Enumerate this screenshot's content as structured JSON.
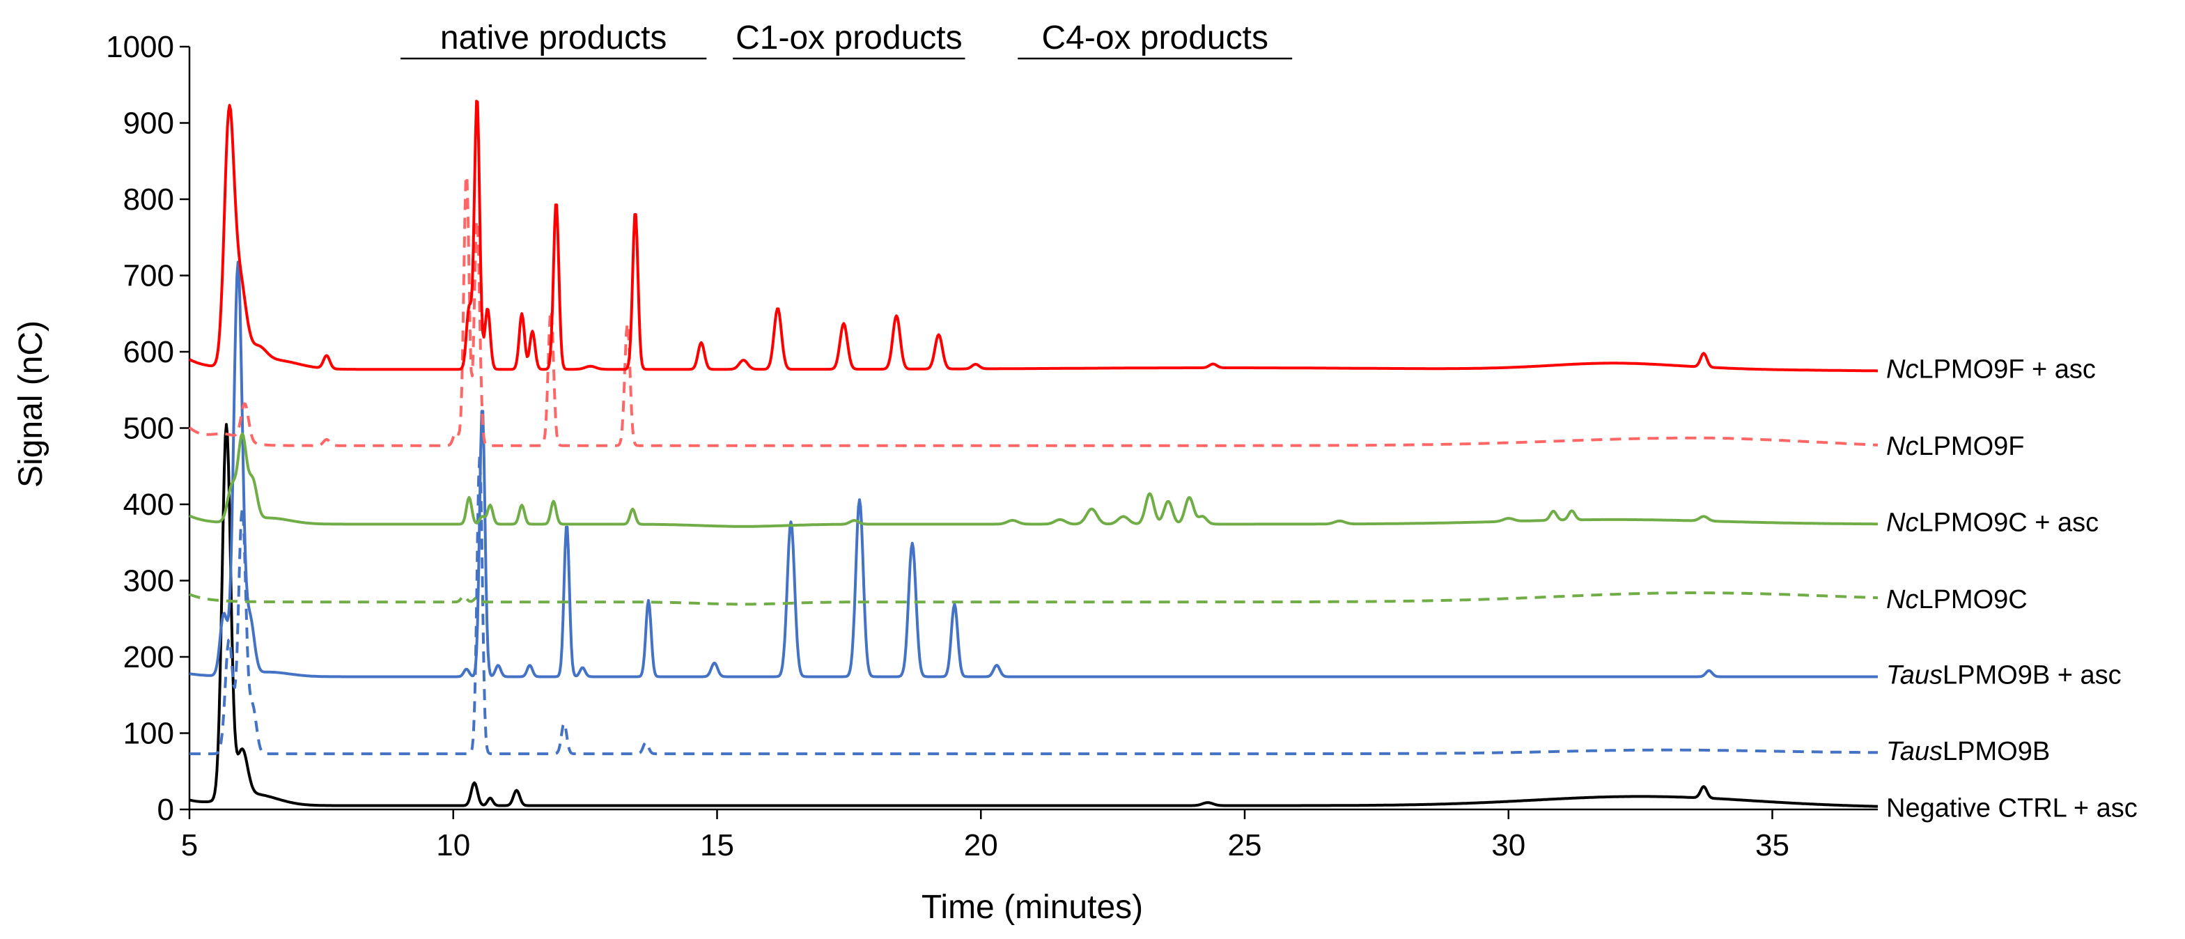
{
  "chart_data": {
    "type": "line",
    "title": "",
    "xlabel": "Time (minutes)",
    "ylabel": "Signal (nC)",
    "xlim": [
      5,
      37
    ],
    "ylim": [
      0,
      1000
    ],
    "x_ticks": [
      5,
      10,
      15,
      20,
      25,
      30,
      35
    ],
    "y_ticks": [
      0,
      100,
      200,
      300,
      400,
      500,
      600,
      700,
      800,
      900,
      1000
    ],
    "grid": false,
    "regions": [
      {
        "label": "native products",
        "x_start": 9,
        "x_end": 14.8
      },
      {
        "label": "C1-ox products",
        "x_start": 15.3,
        "x_end": 19.7
      },
      {
        "label": "C4-ox products",
        "x_start": 20.7,
        "x_end": 25.9
      }
    ],
    "series": [
      {
        "name": "NcLPMO9F + asc",
        "label_italic": "Nc",
        "label_rest": "LPMO9F + asc",
        "color": "#ff0000",
        "dash": false,
        "baseline": 577,
        "start_value": 590,
        "end_value": 575,
        "humps": [
          [
            32.0,
            8,
            1.2
          ],
          [
            24.5,
            2,
            3.0
          ],
          [
            6.6,
            12,
            0.45
          ]
        ],
        "peaks": [
          [
            5.75,
            313,
            0.09
          ],
          [
            5.95,
            110,
            0.12
          ],
          [
            6.3,
            20,
            0.15
          ],
          [
            7.6,
            17,
            0.06
          ],
          [
            10.3,
            80,
            0.05
          ],
          [
            10.45,
            357,
            0.05
          ],
          [
            10.65,
            80,
            0.05
          ],
          [
            11.3,
            73,
            0.05
          ],
          [
            11.5,
            50,
            0.05
          ],
          [
            11.95,
            220,
            0.05
          ],
          [
            12.6,
            4,
            0.1
          ],
          [
            13.45,
            207,
            0.05
          ],
          [
            14.7,
            35,
            0.06
          ],
          [
            15.5,
            12,
            0.08
          ],
          [
            16.15,
            80,
            0.07
          ],
          [
            17.4,
            60,
            0.07
          ],
          [
            18.4,
            70,
            0.07
          ],
          [
            19.2,
            45,
            0.07
          ],
          [
            19.9,
            6,
            0.07
          ],
          [
            24.4,
            5,
            0.07
          ],
          [
            33.7,
            18,
            0.06
          ]
        ]
      },
      {
        "name": "NcLPMO9F",
        "label_italic": "Nc",
        "label_rest": "LPMO9F",
        "color": "#ff6666",
        "dash": true,
        "baseline": 477,
        "start_value": 500,
        "end_value": 474,
        "humps": [
          [
            33.5,
            10,
            2.5
          ],
          [
            5.7,
            12,
            0.3
          ]
        ],
        "peaks": [
          [
            6.05,
            48,
            0.07
          ],
          [
            7.6,
            8,
            0.06
          ],
          [
            10.05,
            18,
            0.05
          ],
          [
            10.25,
            360,
            0.05
          ],
          [
            10.45,
            300,
            0.05
          ],
          [
            11.85,
            180,
            0.05
          ],
          [
            13.3,
            160,
            0.05
          ]
        ]
      },
      {
        "name": "NcLPMO9C + asc",
        "label_italic": "Nc",
        "label_rest": "LPMO9C + asc",
        "color": "#70ad47",
        "dash": false,
        "baseline": 374,
        "start_value": 385,
        "end_value": 374,
        "humps": [
          [
            32.0,
            6,
            2.0
          ],
          [
            6.5,
            8,
            0.4
          ],
          [
            15.5,
            -3,
            0.8
          ]
        ],
        "peaks": [
          [
            5.8,
            45,
            0.08
          ],
          [
            6.0,
            110,
            0.08
          ],
          [
            6.2,
            50,
            0.08
          ],
          [
            10.3,
            35,
            0.05
          ],
          [
            10.55,
            10,
            0.05
          ],
          [
            10.7,
            25,
            0.05
          ],
          [
            11.3,
            25,
            0.05
          ],
          [
            11.9,
            30,
            0.05
          ],
          [
            13.4,
            20,
            0.05
          ],
          [
            17.6,
            5,
            0.08
          ],
          [
            20.6,
            5,
            0.1
          ],
          [
            21.5,
            6,
            0.1
          ],
          [
            22.1,
            20,
            0.1
          ],
          [
            22.7,
            10,
            0.1
          ],
          [
            23.2,
            40,
            0.08
          ],
          [
            23.55,
            30,
            0.08
          ],
          [
            23.95,
            35,
            0.08
          ],
          [
            24.2,
            10,
            0.08
          ],
          [
            26.8,
            4,
            0.1
          ],
          [
            30.0,
            4,
            0.1
          ],
          [
            30.85,
            12,
            0.06
          ],
          [
            31.2,
            12,
            0.06
          ],
          [
            33.7,
            6,
            0.08
          ]
        ]
      },
      {
        "name": "NcLPMO9C",
        "label_italic": "Nc",
        "label_rest": "LPMO9C",
        "color": "#70ad47",
        "dash": true,
        "baseline": 272,
        "start_value": 282,
        "end_value": 273,
        "humps": [
          [
            33.5,
            12,
            2.5
          ],
          [
            15.5,
            -3,
            0.8
          ]
        ],
        "peaks": [
          [
            10.2,
            8,
            0.05
          ],
          [
            10.45,
            6,
            0.05
          ]
        ]
      },
      {
        "name": "TausLPMO9B + asc",
        "label_italic": "Taus",
        "label_rest": "LPMO9B + asc",
        "color": "#4472c4",
        "dash": false,
        "baseline": 174,
        "start_value": 178,
        "end_value": 174,
        "humps": [
          [
            6.5,
            6,
            0.4
          ]
        ],
        "peaks": [
          [
            5.65,
            80,
            0.07
          ],
          [
            5.92,
            540,
            0.08
          ],
          [
            6.15,
            70,
            0.08
          ],
          [
            10.25,
            10,
            0.05
          ],
          [
            10.55,
            355,
            0.05
          ],
          [
            10.85,
            15,
            0.05
          ],
          [
            11.45,
            15,
            0.05
          ],
          [
            12.15,
            200,
            0.05
          ],
          [
            12.45,
            12,
            0.05
          ],
          [
            13.7,
            100,
            0.05
          ],
          [
            14.95,
            18,
            0.06
          ],
          [
            16.4,
            203,
            0.07
          ],
          [
            17.7,
            232,
            0.07
          ],
          [
            18.7,
            175,
            0.07
          ],
          [
            19.5,
            95,
            0.06
          ],
          [
            20.3,
            15,
            0.06
          ],
          [
            33.8,
            8,
            0.06
          ]
        ]
      },
      {
        "name": "TausLPMO9B",
        "label_italic": "Taus",
        "label_rest": "LPMO9B",
        "color": "#4472c4",
        "dash": true,
        "baseline": 73,
        "start_value": 73,
        "end_value": 74,
        "humps": [
          [
            33.0,
            5,
            2.0
          ]
        ],
        "peaks": [
          [
            5.75,
            150,
            0.07
          ],
          [
            6.0,
            320,
            0.07
          ],
          [
            6.2,
            60,
            0.07
          ],
          [
            10.5,
            390,
            0.05
          ],
          [
            12.1,
            40,
            0.05
          ],
          [
            13.65,
            15,
            0.05
          ]
        ]
      },
      {
        "name": "Negative CTRL + asc",
        "label_italic": "",
        "label_rest": "Negative CTRL + asc",
        "color": "#000000",
        "dash": false,
        "baseline": 5,
        "start_value": 12,
        "end_value": 3,
        "humps": [
          [
            32.5,
            12,
            2.0
          ],
          [
            6.2,
            15,
            0.45
          ]
        ],
        "peaks": [
          [
            5.7,
            490,
            0.08
          ],
          [
            6.0,
            60,
            0.1
          ],
          [
            10.4,
            30,
            0.06
          ],
          [
            10.7,
            10,
            0.05
          ],
          [
            11.2,
            20,
            0.06
          ],
          [
            24.3,
            4,
            0.1
          ],
          [
            33.7,
            15,
            0.06
          ]
        ]
      }
    ]
  }
}
